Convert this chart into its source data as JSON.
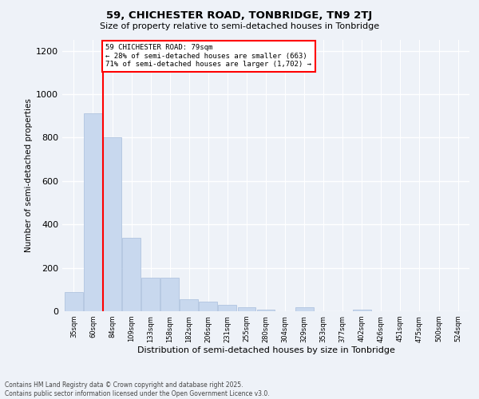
{
  "title1": "59, CHICHESTER ROAD, TONBRIDGE, TN9 2TJ",
  "title2": "Size of property relative to semi-detached houses in Tonbridge",
  "xlabel": "Distribution of semi-detached houses by size in Tonbridge",
  "ylabel": "Number of semi-detached properties",
  "categories": [
    "35sqm",
    "60sqm",
    "84sqm",
    "109sqm",
    "133sqm",
    "158sqm",
    "182sqm",
    "206sqm",
    "231sqm",
    "255sqm",
    "280sqm",
    "304sqm",
    "329sqm",
    "353sqm",
    "377sqm",
    "402sqm",
    "426sqm",
    "451sqm",
    "475sqm",
    "500sqm",
    "524sqm"
  ],
  "values": [
    90,
    910,
    800,
    340,
    155,
    155,
    55,
    45,
    30,
    18,
    8,
    0,
    18,
    0,
    0,
    8,
    0,
    0,
    0,
    0,
    0
  ],
  "bar_color": "#c8d8ee",
  "bar_edge_color": "#a8bedc",
  "vline_x": 1.5,
  "vline_label": "59 CHICHESTER ROAD: 79sqm",
  "annotation_line1": "← 28% of semi-detached houses are smaller (663)",
  "annotation_line2": "71% of semi-detached houses are larger (1,702) →",
  "annotation_box_color": "white",
  "annotation_box_edge": "red",
  "vline_color": "red",
  "ylim": [
    0,
    1250
  ],
  "yticks": [
    0,
    200,
    400,
    600,
    800,
    1000,
    1200
  ],
  "footer1": "Contains HM Land Registry data © Crown copyright and database right 2025.",
  "footer2": "Contains public sector information licensed under the Open Government Licence v3.0.",
  "background_color": "#eef2f8",
  "grid_color": "white"
}
